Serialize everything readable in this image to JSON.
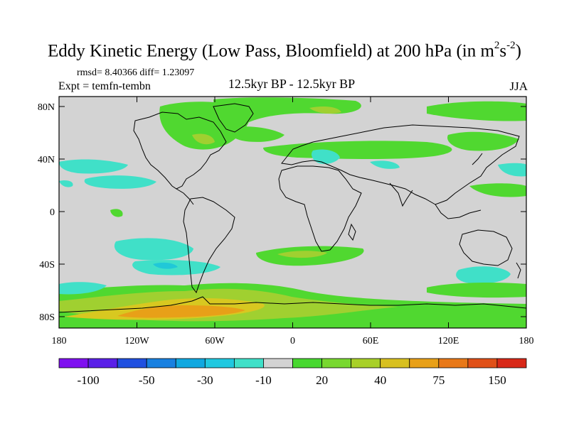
{
  "title": "Eddy Kinetic Energy (Low Pass, Bloomfield) at 200 hPa (in m",
  "title_sup1": "2",
  "title_mid": "s",
  "title_sup2": "-2",
  "title_end": ")",
  "stats": "rmsd= 8.40366 diff= 1.23097",
  "experiment": "Expt = temfn-tembn",
  "period": "12.5kyr BP - 12.5kyr BP",
  "season": "JJA",
  "lat_labels": [
    {
      "text": "80N",
      "lat": 80
    },
    {
      "text": "40N",
      "lat": 40
    },
    {
      "text": "0",
      "lat": 0
    },
    {
      "text": "40S",
      "lat": -40
    },
    {
      "text": "80S",
      "lat": -80
    }
  ],
  "lon_labels": [
    {
      "text": "180",
      "lon": -180
    },
    {
      "text": "120W",
      "lon": -120
    },
    {
      "text": "60W",
      "lon": -60
    },
    {
      "text": "0",
      "lon": 0
    },
    {
      "text": "60E",
      "lon": 60
    },
    {
      "text": "120E",
      "lon": 120
    },
    {
      "text": "180",
      "lon": 180
    }
  ],
  "colors": {
    "background": "#d3d3d3",
    "cyan": "#40e0c8",
    "cyan_dark": "#20c8d8",
    "green": "#50d830",
    "yellow_green": "#a0d030",
    "yellow": "#d8c820",
    "orange": "#e8a018"
  },
  "colorbar": {
    "colors": [
      "#7f10f0",
      "#5a20e8",
      "#2050e0",
      "#1880e0",
      "#10a8e0",
      "#20c8e0",
      "#40e0c8",
      "#d3d3d3",
      "#48d830",
      "#78d830",
      "#a8d028",
      "#d8c020",
      "#e8a018",
      "#e87818",
      "#e05018",
      "#d82818"
    ],
    "labels": [
      {
        "text": "-100",
        "index": 1
      },
      {
        "text": "-50",
        "index": 3
      },
      {
        "text": "-30",
        "index": 5
      },
      {
        "text": "-10",
        "index": 7
      },
      {
        "text": "20",
        "index": 9
      },
      {
        "text": "40",
        "index": 11
      },
      {
        "text": "75",
        "index": 13
      },
      {
        "text": "150",
        "index": 15
      }
    ]
  }
}
